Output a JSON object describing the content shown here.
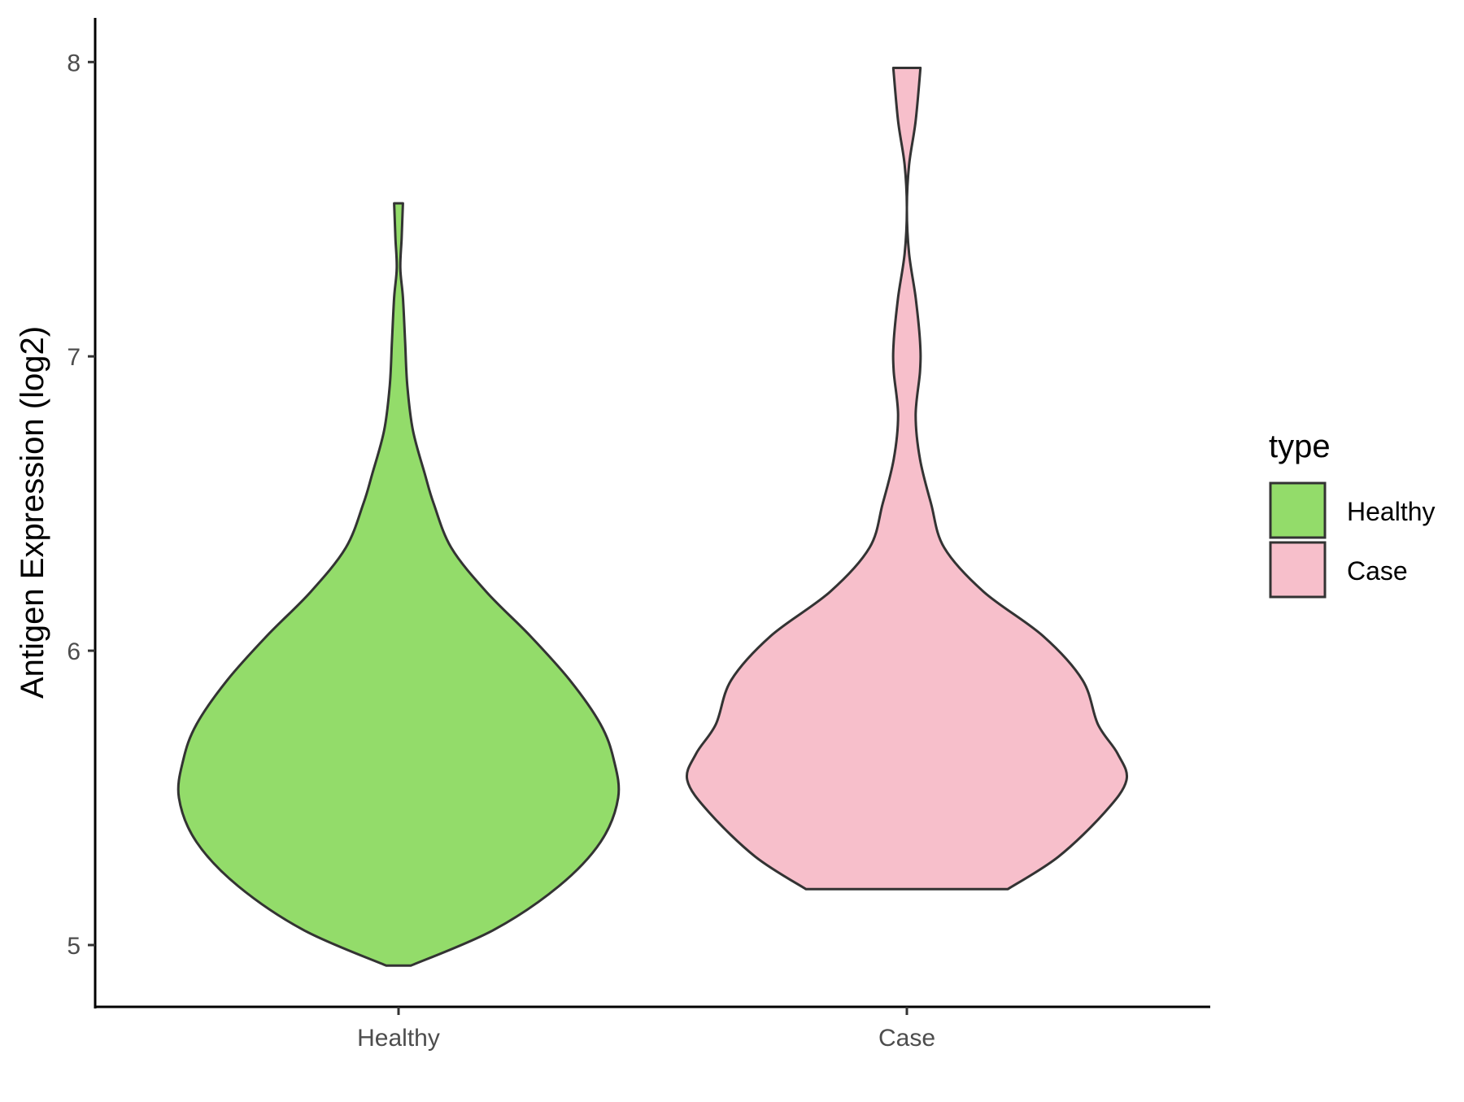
{
  "chart_data": {
    "type": "violin",
    "ylabel": "Antigen Expression (log2)",
    "xlabel": "",
    "categories": [
      "Healthy",
      "Case"
    ],
    "yticks": [
      5,
      6,
      7,
      8
    ],
    "ylim": [
      4.79,
      8.15
    ],
    "grid": false,
    "legend": {
      "title": "type",
      "position": "right",
      "entries": [
        {
          "label": "Healthy",
          "color": "#93dc6a"
        },
        {
          "label": "Case",
          "color": "#f7bfcb"
        }
      ]
    },
    "series": [
      {
        "category": "Healthy",
        "color": "#93dc6a",
        "min": 4.93,
        "max": 7.52,
        "density_profile": [
          [
            4.93,
            0.056
          ],
          [
            5.05,
            0.43
          ],
          [
            5.2,
            0.73
          ],
          [
            5.35,
            0.92
          ],
          [
            5.5,
            1.0
          ],
          [
            5.63,
            0.98
          ],
          [
            5.75,
            0.92
          ],
          [
            5.9,
            0.78
          ],
          [
            6.05,
            0.6
          ],
          [
            6.2,
            0.4
          ],
          [
            6.35,
            0.24
          ],
          [
            6.5,
            0.16
          ],
          [
            6.6,
            0.12
          ],
          [
            6.75,
            0.065
          ],
          [
            6.9,
            0.04
          ],
          [
            7.05,
            0.03
          ],
          [
            7.2,
            0.02
          ],
          [
            7.3,
            0.008
          ],
          [
            7.4,
            0.014
          ],
          [
            7.52,
            0.02
          ]
        ]
      },
      {
        "category": "Case",
        "color": "#f7bfcb",
        "min": 5.19,
        "max": 7.98,
        "density_profile": [
          [
            5.19,
            0.46
          ],
          [
            5.3,
            0.69
          ],
          [
            5.45,
            0.9
          ],
          [
            5.56,
            1.0
          ],
          [
            5.65,
            0.96
          ],
          [
            5.75,
            0.87
          ],
          [
            5.9,
            0.8
          ],
          [
            6.05,
            0.62
          ],
          [
            6.2,
            0.35
          ],
          [
            6.35,
            0.17
          ],
          [
            6.5,
            0.11
          ],
          [
            6.65,
            0.06
          ],
          [
            6.8,
            0.04
          ],
          [
            6.95,
            0.06
          ],
          [
            7.05,
            0.06
          ],
          [
            7.2,
            0.04
          ],
          [
            7.35,
            0.01
          ],
          [
            7.5,
            0.0
          ],
          [
            7.65,
            0.01
          ],
          [
            7.8,
            0.04
          ],
          [
            7.98,
            0.062
          ]
        ]
      }
    ]
  }
}
